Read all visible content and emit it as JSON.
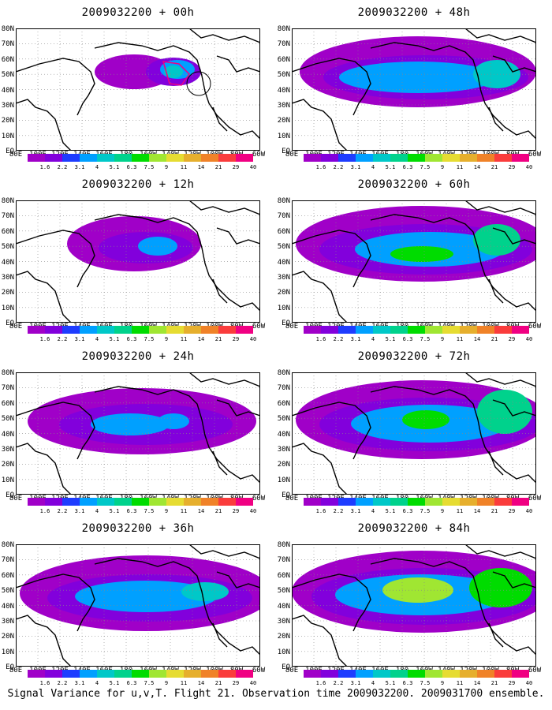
{
  "footer": "Signal Variance for u,v,T. Flight 21. Observation time 2009032200. 2009031700 ensemble.",
  "lat_labels": [
    "80N",
    "70N",
    "60N",
    "50N",
    "40N",
    "30N",
    "20N",
    "10N",
    "EQ"
  ],
  "lon_labels": [
    "80E",
    "100E",
    "120E",
    "140E",
    "160E",
    "180",
    "160W",
    "140W",
    "120W",
    "100W",
    "80W",
    "60W"
  ],
  "colorbar": {
    "labels": [
      "1.6",
      "2.2",
      "3.1",
      "4",
      "5.1",
      "6.3",
      "7.5",
      "9",
      "11",
      "14",
      "21",
      "29",
      "40"
    ],
    "colors": [
      "#a000c8",
      "#8200dc",
      "#1e3cff",
      "#00a0ff",
      "#00c8c8",
      "#00d28c",
      "#00dc00",
      "#a0e632",
      "#e6dc32",
      "#e6af2d",
      "#f08228",
      "#fa3c3c",
      "#f00082"
    ]
  },
  "panels": [
    {
      "title": "2009032200 + 00h"
    },
    {
      "title": "2009032200 + 48h"
    },
    {
      "title": "2009032200 + 12h"
    },
    {
      "title": "2009032200 + 60h"
    },
    {
      "title": "2009032200 + 24h"
    },
    {
      "title": "2009032200 + 72h"
    },
    {
      "title": "2009032200 + 36h"
    },
    {
      "title": "2009032200 + 84h"
    }
  ]
}
